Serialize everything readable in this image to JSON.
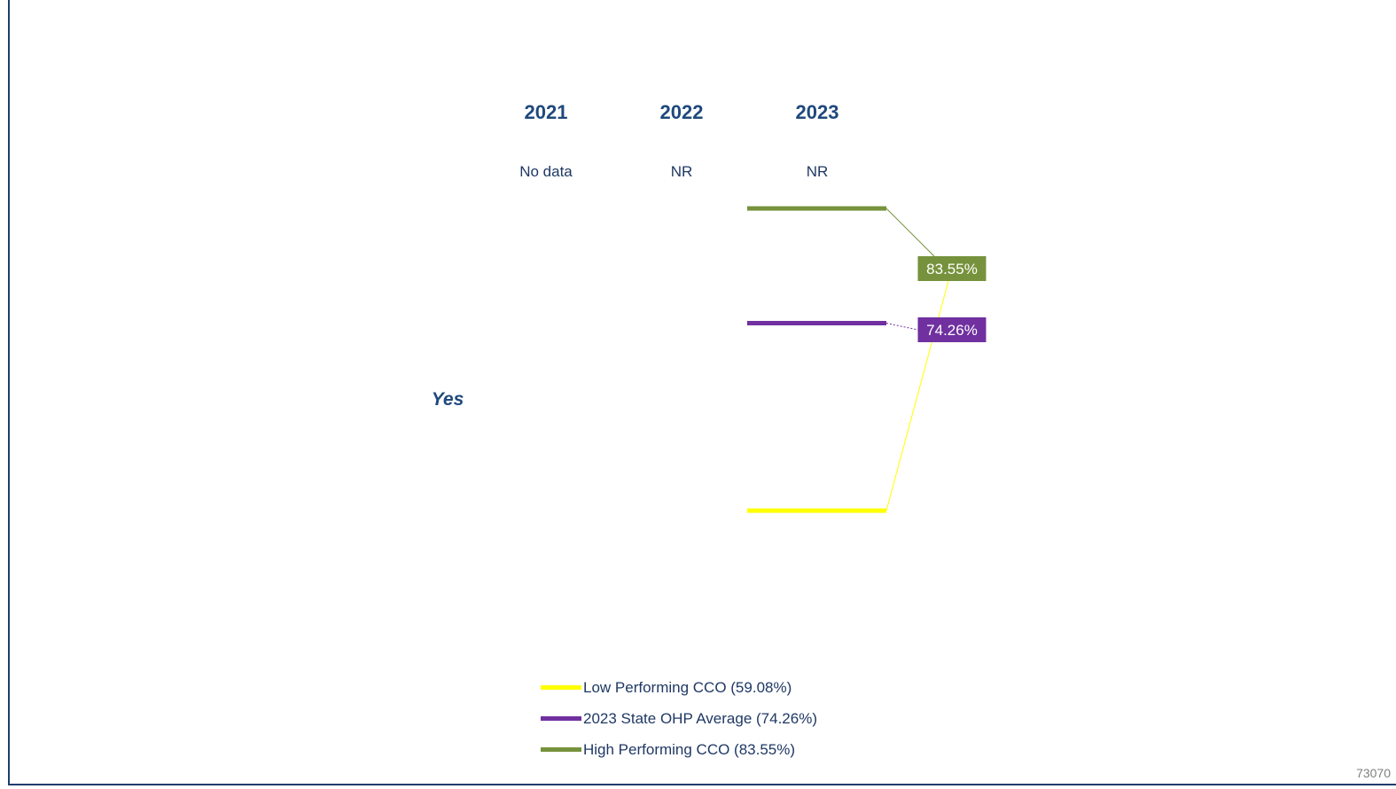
{
  "chart_data": {
    "type": "line",
    "categories": [
      "2021",
      "2022",
      "2023"
    ],
    "category_status": [
      "No data",
      "NR",
      "NR"
    ],
    "row_label": "Yes",
    "ylim": [
      50,
      90
    ],
    "grid": false,
    "legend_position": "bottom",
    "series": [
      {
        "name": "Low Performing CCO (59.08%)",
        "value": 59.08,
        "label": "",
        "color": "#ffff00",
        "line_style": "solid"
      },
      {
        "name": "2023 State OHP Average (74.26%)",
        "value": 74.26,
        "label": "74.26%",
        "color": "#7030a0",
        "line_style": "dotted"
      },
      {
        "name": "High Performing CCO (83.55%)",
        "value": 83.55,
        "label": "83.55%",
        "color": "#76923c",
        "line_style": "solid"
      }
    ]
  },
  "page_number": "73070"
}
